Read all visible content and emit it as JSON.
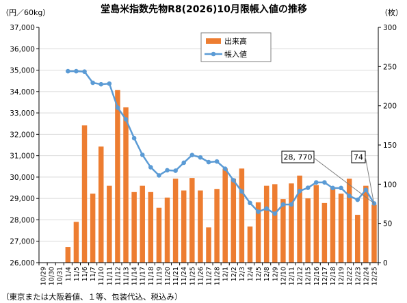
{
  "chart_data": {
    "type": "bar",
    "title": "堂島米指数先物R8(2026)10月限帳入値の推移",
    "y_left_unit": "（円／60kg）",
    "y_right_unit": "（枚）",
    "footnote": "（東京または大阪着値、１等、包装代込、税込み）",
    "y_left_lim": [
      26000,
      37000
    ],
    "y_left_ticks": [
      "26,000",
      "27,000",
      "28,000",
      "29,000",
      "30,000",
      "31,000",
      "32,000",
      "33,000",
      "34,000",
      "35,000",
      "36,000",
      "37,000"
    ],
    "y_right_lim": [
      0,
      300
    ],
    "y_right_ticks": [
      "0",
      "50",
      "100",
      "150",
      "200",
      "250",
      "300"
    ],
    "x": [
      "10/29",
      "10/30",
      "10/31",
      "11/4",
      "11/5",
      "11/6",
      "11/7",
      "11/10",
      "11/11",
      "11/12",
      "11/13",
      "11/14",
      "11/17",
      "11/18",
      "11/19",
      "11/20",
      "11/21",
      "11/24",
      "11/25",
      "11/26",
      "11/27",
      "11/28",
      "12/1",
      "12/2",
      "12/3",
      "12/4",
      "12/5",
      "12/8",
      "12/9",
      "12/10",
      "12/11",
      "12/12",
      "12/15",
      "12/16",
      "12/17",
      "12/18",
      "12/19",
      "12/22",
      "12/23",
      "12/24",
      "12/25"
    ],
    "series": [
      {
        "name": "出来高",
        "axis": "right",
        "type": "bar",
        "color": "#ED7D31",
        "values": [
          null,
          null,
          null,
          20,
          52,
          175,
          88,
          148,
          98,
          220,
          198,
          90,
          98,
          90,
          70,
          83,
          107,
          92,
          108,
          92,
          45,
          94,
          120,
          107,
          120,
          46,
          77,
          98,
          100,
          81,
          101,
          111,
          82,
          99,
          76,
          96,
          88,
          107,
          61,
          98,
          74
        ]
      },
      {
        "name": "帳入値",
        "axis": "left",
        "type": "line",
        "color": "#5B9BD5",
        "values": [
          null,
          null,
          null,
          34950,
          34950,
          34930,
          34410,
          34340,
          34370,
          33250,
          32700,
          31820,
          31040,
          30460,
          30080,
          30320,
          30300,
          30670,
          31030,
          30920,
          30700,
          30730,
          30390,
          29850,
          29330,
          28790,
          28380,
          28530,
          28290,
          28720,
          28720,
          29350,
          29500,
          29750,
          29750,
          29490,
          29490,
          29120,
          28940,
          29400,
          28770
        ]
      }
    ],
    "legend": {
      "position": "top-center"
    },
    "annotations": [
      {
        "label": "28, 770",
        "target": "帳入値",
        "x": "12/25"
      },
      {
        "label": "74",
        "target": "出来高",
        "x": "12/25"
      }
    ]
  }
}
